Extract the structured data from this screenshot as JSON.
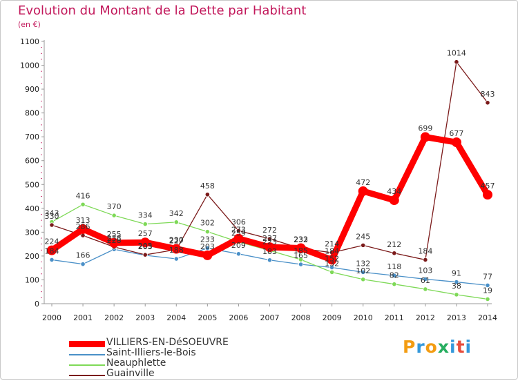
{
  "title": "Evolution du Montant de la Dette par Habitant",
  "unit": "(en €)",
  "brand": {
    "letters": [
      "P",
      "r",
      "o",
      "x",
      "i",
      "t",
      "i"
    ],
    "colors": [
      "#f39c12",
      "#3498db",
      "#f39c12",
      "#27ae60",
      "#3498db",
      "#e74c3c",
      "#3498db"
    ]
  },
  "chart_data": {
    "type": "line",
    "x": [
      2000,
      2001,
      2002,
      2003,
      2004,
      2005,
      2006,
      2007,
      2008,
      2009,
      2010,
      2011,
      2012,
      2013,
      2014
    ],
    "ylim": [
      0,
      1100
    ],
    "yticks": [
      0,
      100,
      200,
      300,
      400,
      500,
      600,
      700,
      800,
      900,
      1000,
      1100
    ],
    "grid": false,
    "legend_placement": "bottom-left",
    "series": [
      {
        "name": "VILLIERS-EN-DéSOEUVRE",
        "color": "#ff0000",
        "values": [
          224,
          313,
          255,
          257,
          230,
          203,
          273,
          237,
          233,
          184,
          472,
          434,
          699,
          677,
          457
        ]
      },
      {
        "name": "Saint-Illiers-le-Bois",
        "color": "#4a90c8",
        "values": [
          184,
          166,
          228,
          203,
          188,
          233,
          209,
          183,
          165,
          152,
          132,
          118,
          103,
          91,
          77
        ]
      },
      {
        "name": "Neauphlette",
        "color": "#7ed957",
        "values": [
          343,
          416,
          370,
          334,
          342,
          302,
          259,
          223,
          185,
          132,
          102,
          82,
          61,
          38,
          19
        ]
      },
      {
        "name": "Guainville",
        "color": "#7b1a1a",
        "values": [
          330,
          286,
          238,
          205,
          227,
          458,
          306,
          272,
          232,
          214,
          245,
          212,
          184,
          1014,
          843
        ]
      }
    ]
  }
}
